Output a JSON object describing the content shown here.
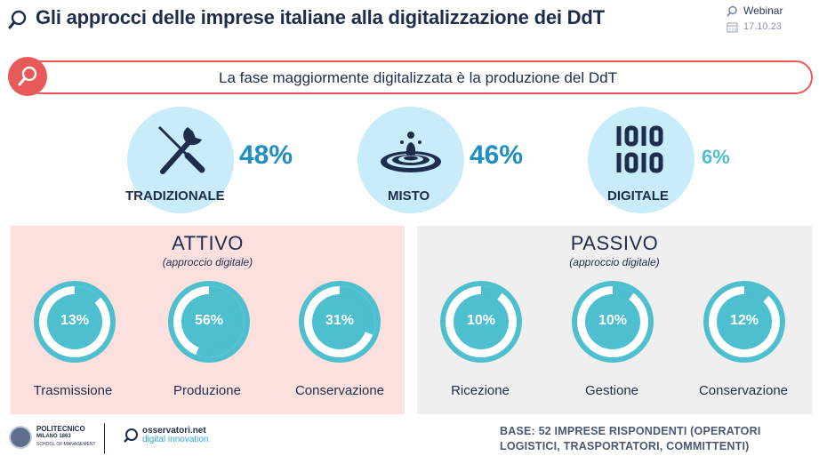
{
  "header": {
    "title": "Gli approcci delle imprese italiane alla digitalizzazione dei DdT",
    "event_label": "Webinar",
    "date": "17.10.23"
  },
  "banner": {
    "text": "La fase maggiormente digitalizzata è la produzione del DdT"
  },
  "approaches": [
    {
      "label": "TRADIZIONALE",
      "percent": "48%",
      "icon": "tools-icon"
    },
    {
      "label": "MISTO",
      "percent": "46%",
      "icon": "water-drop-icon"
    },
    {
      "label": "DIGITALE",
      "percent": "6%",
      "icon": "binary-icon"
    }
  ],
  "panels": {
    "active": {
      "title": "ATTIVO",
      "subtitle": "(approccio digitale)",
      "items": [
        {
          "label": "Trasmissione",
          "value": "13%",
          "fraction": 0.13
        },
        {
          "label": "Produzione",
          "value": "56%",
          "fraction": 0.56
        },
        {
          "label": "Conservazione",
          "value": "31%",
          "fraction": 0.31
        }
      ]
    },
    "passive": {
      "title": "PASSIVO",
      "subtitle": "(approccio digitale)",
      "items": [
        {
          "label": "Ricezione",
          "value": "10%",
          "fraction": 0.1
        },
        {
          "label": "Gestione",
          "value": "10%",
          "fraction": 0.1
        },
        {
          "label": "Conservazione",
          "value": "12%",
          "fraction": 0.12
        }
      ]
    }
  },
  "footer": {
    "poli_name": "POLITECNICO",
    "poli_city": "MILANO 1863",
    "poli_school": "SCHOOL OF MANAGEMENT",
    "oss_name": "osservatori.net",
    "oss_sub": "digital innovation",
    "base_line1": "BASE: 52 IMPRESE RISPONDENTI (OPERATORI",
    "base_line2": "LOGISTICI, TRASPORTATORI, COMMITTENTI)"
  },
  "colors": {
    "accent_red": "#e85a5a",
    "teal": "#4dbfcf",
    "bubble": "#c8ecf9",
    "percent_blue": "#1f8fc2",
    "navy": "#1f2d4d"
  }
}
